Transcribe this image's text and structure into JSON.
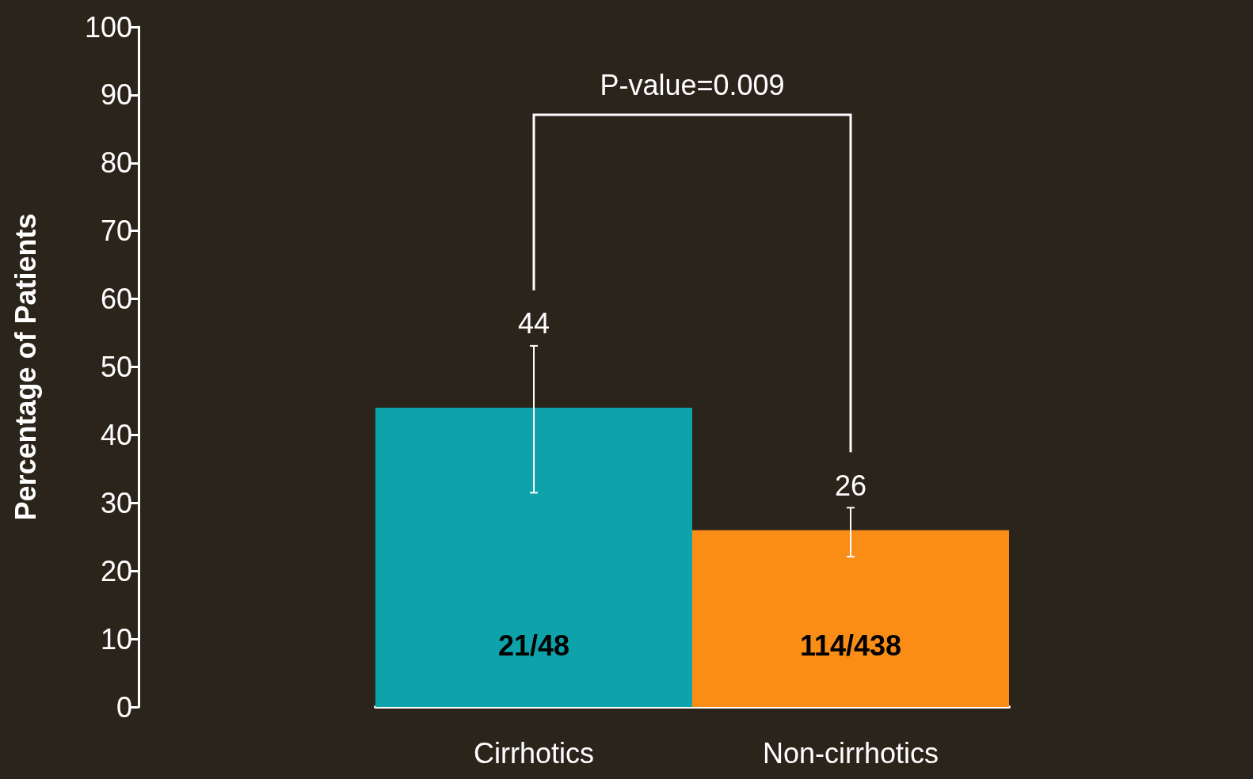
{
  "chart_data": {
    "type": "bar",
    "categories": [
      "Cirrhotics",
      "Non-cirrhotics"
    ],
    "values": [
      44,
      26
    ],
    "colors": [
      "#0ea2aa",
      "#f98d16"
    ],
    "errors": [
      [
        31.5,
        53.1
      ],
      [
        22.1,
        29.3
      ]
    ],
    "value_labels": [
      "44",
      "26"
    ],
    "ylabel": "Percentage of Patients",
    "ylim": [
      0,
      100
    ],
    "yticks": [
      0,
      10,
      20,
      30,
      40,
      50,
      60,
      70,
      80,
      90,
      100
    ],
    "grid": false,
    "annotations": [
      "21/48",
      "114/438",
      "P-value=0.009"
    ]
  }
}
